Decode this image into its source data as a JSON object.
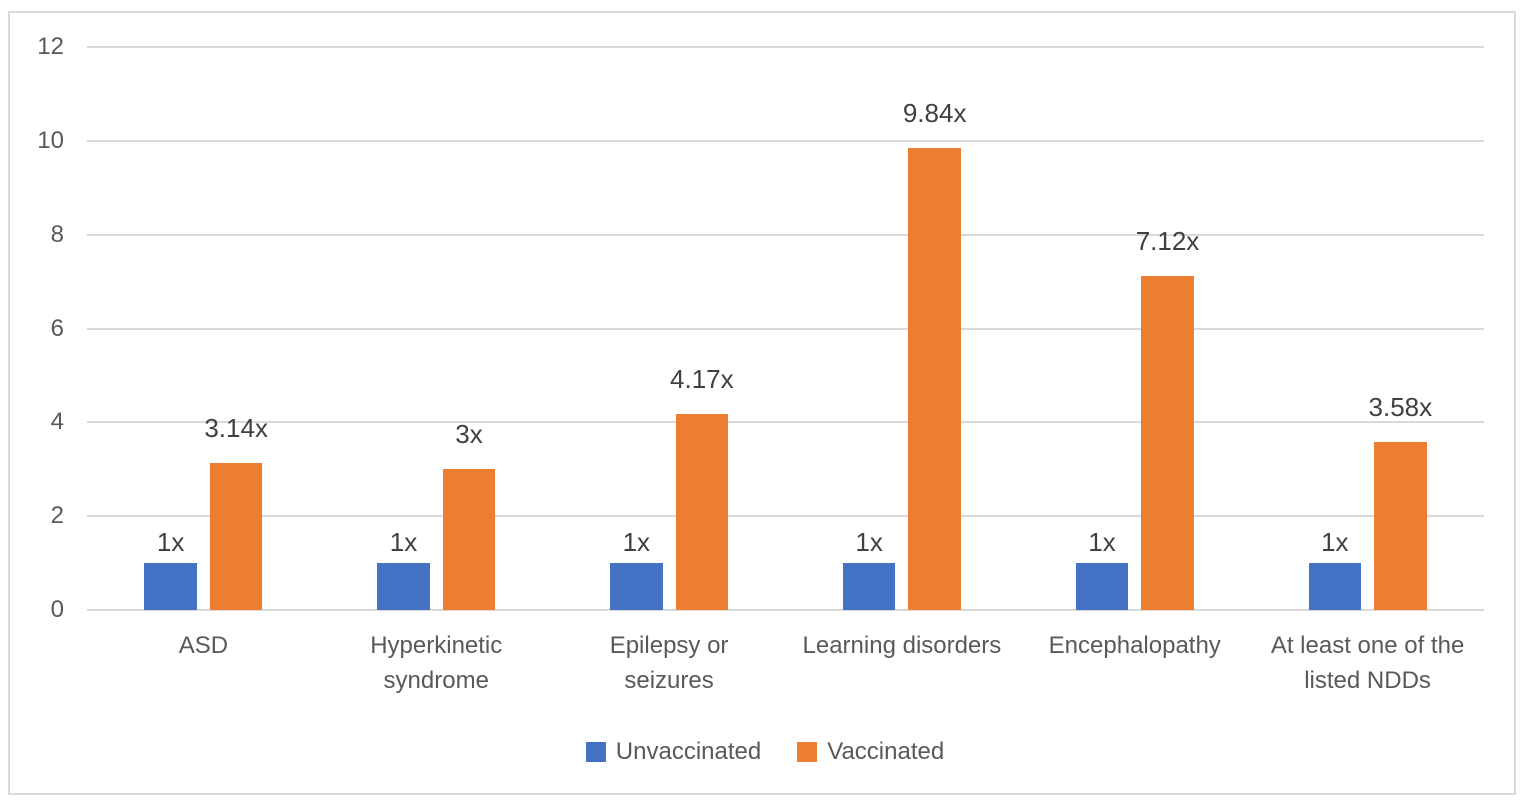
{
  "chart_data": {
    "type": "bar",
    "title": "",
    "xlabel": "",
    "ylabel": "",
    "categories": [
      "ASD",
      "Hyperkinetic\nsyndrome",
      "Epilepsy or\nseizures",
      "Learning disorders",
      "Encephalopathy",
      "At least one of the\nlisted NDDs"
    ],
    "series": [
      {
        "name": "Unvaccinated",
        "color": "#4472C4",
        "values": [
          1,
          1,
          1,
          1,
          1,
          1
        ],
        "data_labels": [
          "1x",
          "1x",
          "1x",
          "1x",
          "1x",
          "1x"
        ]
      },
      {
        "name": "Vaccinated",
        "color": "#ED7D31",
        "values": [
          3.14,
          3,
          4.17,
          9.84,
          7.12,
          3.58
        ],
        "data_labels": [
          "3.14x",
          "3x",
          "4.17x",
          "9.84x",
          "7.12x",
          "3.58x"
        ]
      }
    ],
    "yticks": [
      0,
      2,
      4,
      6,
      8,
      10,
      12
    ],
    "ylim": [
      0,
      12
    ],
    "grid": "horizontal",
    "legend_position": "bottom",
    "colors": {
      "background": "#FFFFFF",
      "chart_border": "#D9D9D9",
      "gridline": "#D9D9D9",
      "axis_text": "#595959",
      "data_label_text": "#404040"
    }
  }
}
